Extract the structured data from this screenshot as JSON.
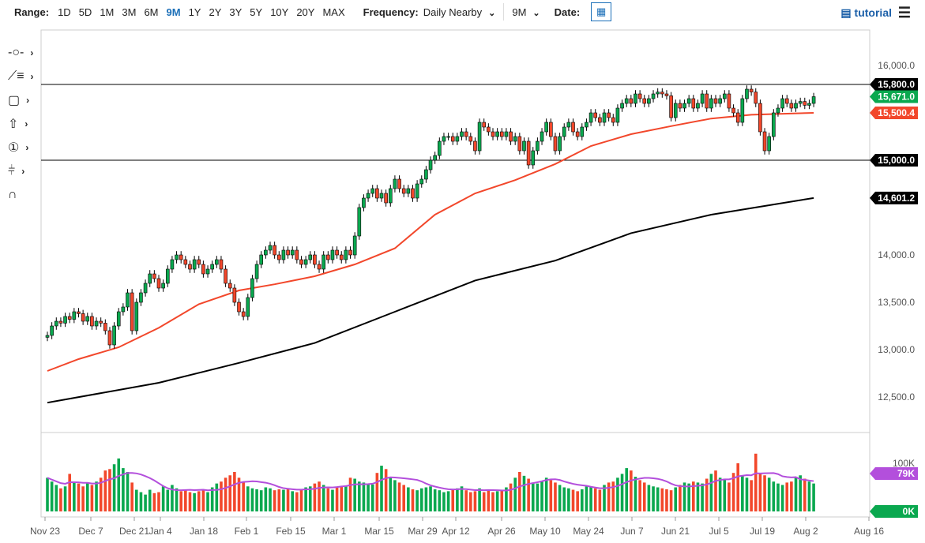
{
  "toolbar": {
    "range_label": "Range:",
    "ranges": [
      "1D",
      "5D",
      "1M",
      "3M",
      "6M",
      "9M",
      "1Y",
      "2Y",
      "3Y",
      "5Y",
      "10Y",
      "20Y",
      "MAX"
    ],
    "active_range": "9M",
    "frequency_label": "Frequency:",
    "frequency_value": "Daily Nearby",
    "period_value": "9M",
    "date_label": "Date:",
    "tutorial_label": "tutorial"
  },
  "tools": [
    "crosshair-icon",
    "trendline-icon",
    "rectangle-icon",
    "arrow-icon",
    "marker-icon",
    "fib-icon",
    "magnet-icon"
  ],
  "colors": {
    "up": "#0aa84f",
    "down": "#f2472b",
    "ma50": "#f2472b",
    "ma200": "#000000",
    "vol_ma": "#b34fdc"
  },
  "chart_data": {
    "type": "candlestick",
    "y_ticks": [
      "16,000.0",
      "14,000.0",
      "13,500.0",
      "13,000.0",
      "12,500.0"
    ],
    "y_tick_values": [
      16000,
      14000,
      13500,
      13000,
      12500
    ],
    "ylim": [
      12200,
      16400
    ],
    "x_ticks": [
      "Nov 23",
      "Dec 7",
      "Dec 21",
      "Jan 4",
      "Jan 18",
      "Feb 1",
      "Feb 15",
      "Mar 1",
      "Mar 15",
      "Mar 29",
      "Apr 12",
      "Apr 26",
      "May 10",
      "May 24",
      "Jun 7",
      "Jun 21",
      "Jul 5",
      "Jul 19",
      "Aug 2",
      "Aug 16"
    ],
    "horizontal_lines": [
      {
        "value": 15800,
        "label": "15,800.0"
      },
      {
        "value": 15000,
        "label": "15,000.0"
      }
    ],
    "price_tags": [
      {
        "label": "15,671.0",
        "value": 15671,
        "color": "#0aa84f"
      },
      {
        "label": "15,500.4",
        "value": 15500.4,
        "color": "#f2472b"
      },
      {
        "label": "14,601.2",
        "value": 14601.2,
        "color": "#000000"
      }
    ],
    "closes": [
      13150,
      13250,
      13300,
      13280,
      13350,
      13320,
      13400,
      13380,
      13300,
      13350,
      13250,
      13300,
      13280,
      13200,
      13050,
      13250,
      13400,
      13450,
      13600,
      13200,
      13500,
      13600,
      13700,
      13800,
      13750,
      13650,
      13700,
      13850,
      13950,
      14000,
      13950,
      13900,
      13850,
      13950,
      13900,
      13800,
      13850,
      13900,
      13950,
      13850,
      13700,
      13650,
      13500,
      13400,
      13350,
      13550,
      13750,
      13900,
      14000,
      14050,
      14100,
      14000,
      13950,
      14050,
      14000,
      14050,
      13950,
      13900,
      13950,
      14000,
      13900,
      13850,
      14000,
      13950,
      14050,
      14000,
      13950,
      14050,
      14000,
      14200,
      14500,
      14600,
      14650,
      14700,
      14600,
      14650,
      14550,
      14700,
      14800,
      14700,
      14650,
      14700,
      14600,
      14750,
      14800,
      14900,
      15000,
      15050,
      15200,
      15250,
      15250,
      15200,
      15250,
      15300,
      15250,
      15200,
      15100,
      15400,
      15350,
      15300,
      15250,
      15300,
      15250,
      15300,
      15200,
      15250,
      15100,
      15200,
      14950,
      15100,
      15200,
      15300,
      15400,
      15250,
      15100,
      15250,
      15350,
      15400,
      15300,
      15250,
      15350,
      15400,
      15500,
      15450,
      15400,
      15500,
      15450,
      15400,
      15550,
      15600,
      15650,
      15600,
      15700,
      15650,
      15600,
      15650,
      15700,
      15720,
      15700,
      15680,
      15450,
      15600,
      15550,
      15600,
      15650,
      15550,
      15600,
      15700,
      15550,
      15650,
      15600,
      15650,
      15700,
      15550,
      15500,
      15400,
      15650,
      15750,
      15720,
      15600,
      15300,
      15100,
      15250,
      15500,
      15550,
      15650,
      15600,
      15550,
      15600,
      15620,
      15580,
      15600,
      15671
    ],
    "ma50": {
      "index": [
        0,
        7,
        16,
        25,
        34,
        43,
        51,
        60,
        69,
        78,
        87,
        96,
        105,
        114,
        122,
        131,
        140,
        149,
        158,
        172
      ],
      "values": [
        12775,
        12900,
        13025,
        13230,
        13480,
        13625,
        13690,
        13775,
        13900,
        14070,
        14425,
        14650,
        14790,
        14960,
        15150,
        15275,
        15360,
        15440,
        15480,
        15500
      ]
    },
    "ma200": {
      "index": [
        0,
        25,
        43,
        60,
        78,
        96,
        114,
        131,
        149,
        172
      ],
      "values": [
        12440,
        12650,
        12860,
        13070,
        13400,
        13730,
        13940,
        14230,
        14425,
        14601.2
      ]
    },
    "volume": {
      "y_tick": "100K",
      "zero_label": "0K",
      "last_ma_label": "79K",
      "ylim": [
        0,
        130
      ],
      "values": [
        70,
        62,
        55,
        48,
        52,
        78,
        60,
        58,
        52,
        60,
        55,
        62,
        70,
        85,
        88,
        98,
        110,
        90,
        82,
        60,
        45,
        40,
        35,
        45,
        38,
        40,
        52,
        45,
        55,
        48,
        42,
        44,
        40,
        38,
        42,
        45,
        40,
        50,
        58,
        62,
        70,
        75,
        82,
        70,
        60,
        52,
        48,
        46,
        44,
        50,
        48,
        44,
        46,
        45,
        48,
        42,
        40,
        46,
        50,
        52,
        58,
        62,
        55,
        48,
        45,
        50,
        52,
        54,
        70,
        68,
        62,
        60,
        58,
        56,
        80,
        95,
        88,
        72,
        65,
        60,
        55,
        50,
        46,
        44,
        48,
        50,
        52,
        46,
        44,
        40,
        42,
        45,
        48,
        52,
        44,
        40,
        42,
        48,
        40,
        44,
        40,
        42,
        45,
        50,
        58,
        70,
        82,
        74,
        68,
        60,
        58,
        62,
        70,
        65,
        60,
        55,
        50,
        48,
        45,
        42,
        46,
        52,
        50,
        48,
        45,
        55,
        60,
        62,
        70,
        78,
        90,
        85,
        72,
        65,
        60,
        55,
        52,
        50,
        48,
        46,
        44,
        50,
        55,
        60,
        58,
        62,
        60,
        58,
        68,
        78,
        85,
        70,
        68,
        60,
        80,
        100,
        75,
        70,
        65,
        120,
        80,
        75,
        70,
        62,
        58,
        55,
        60,
        62,
        70,
        75,
        68,
        62,
        58
      ]
    }
  }
}
